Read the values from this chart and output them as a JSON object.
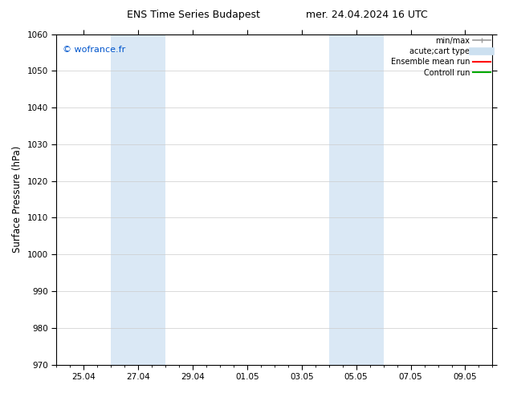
{
  "title_left": "ENS Time Series Budapest",
  "title_right": "mer. 24.04.2024 16 UTC",
  "ylabel": "Surface Pressure (hPa)",
  "ylim": [
    970,
    1060
  ],
  "yticks": [
    970,
    980,
    990,
    1000,
    1010,
    1020,
    1030,
    1040,
    1050,
    1060
  ],
  "xtick_labels": [
    "25.04",
    "27.04",
    "29.04",
    "01.05",
    "03.05",
    "05.05",
    "07.05",
    "09.05"
  ],
  "xtick_positions": [
    1,
    3,
    5,
    7,
    9,
    11,
    13,
    15
  ],
  "xmin": 0,
  "xmax": 16,
  "shaded_bands": [
    {
      "x_start": 2,
      "x_end": 4,
      "color": "#dae8f5"
    },
    {
      "x_start": 10,
      "x_end": 12,
      "color": "#dae8f5"
    }
  ],
  "watermark_text": "© wofrance.fr",
  "watermark_color": "#0055cc",
  "background_color": "#ffffff",
  "plot_bg_color": "#ffffff",
  "legend_entries": [
    {
      "label": "min/max",
      "color": "#999999",
      "lw": 1.2,
      "type": "line_with_caps"
    },
    {
      "label": "acute;cart type",
      "color": "#cce0f0",
      "lw": 7,
      "type": "line"
    },
    {
      "label": "Ensemble mean run",
      "color": "#ff0000",
      "lw": 1.5,
      "type": "line"
    },
    {
      "label": "Controll run",
      "color": "#00aa00",
      "lw": 1.5,
      "type": "line"
    }
  ],
  "grid_color": "#cccccc",
  "tick_label_fontsize": 7.5,
  "title_fontsize": 9,
  "ylabel_fontsize": 8.5,
  "watermark_fontsize": 8
}
